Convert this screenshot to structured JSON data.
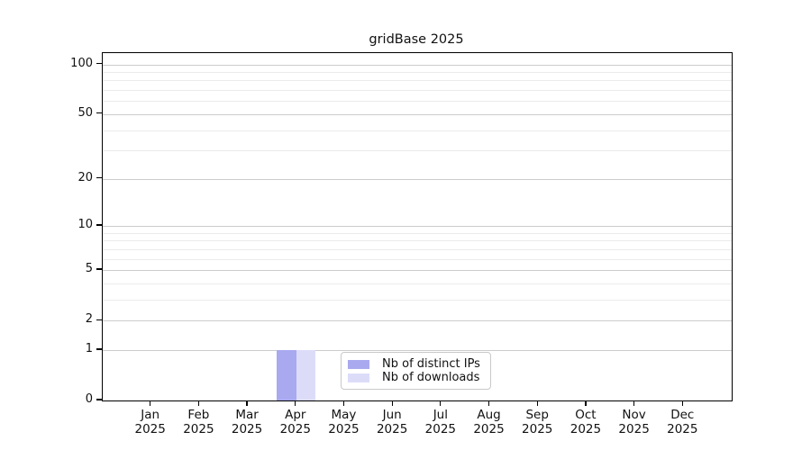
{
  "title": "gridBase 2025",
  "chart_data": {
    "type": "bar",
    "title": "gridBase 2025",
    "categories": [
      "Jan 2025",
      "Feb 2025",
      "Mar 2025",
      "Apr 2025",
      "May 2025",
      "Jun 2025",
      "Jul 2025",
      "Aug 2025",
      "Sep 2025",
      "Oct 2025",
      "Nov 2025",
      "Dec 2025"
    ],
    "x_tick_months": [
      "Jan",
      "Feb",
      "Mar",
      "Apr",
      "May",
      "Jun",
      "Jul",
      "Aug",
      "Sep",
      "Oct",
      "Nov",
      "Dec"
    ],
    "x_tick_year": "2025",
    "series": [
      {
        "name": "Nb of distinct IPs",
        "color": "#a9a9f0",
        "values": [
          0,
          0,
          0,
          1,
          0,
          0,
          0,
          0,
          0,
          0,
          0,
          0
        ]
      },
      {
        "name": "Nb of downloads",
        "color": "#dcdcf9",
        "values": [
          0,
          0,
          0,
          1,
          0,
          0,
          0,
          0,
          0,
          0,
          0,
          0
        ]
      }
    ],
    "y_scale": "log1p",
    "y_ticks": [
      0,
      1,
      2,
      5,
      10,
      20,
      50,
      100
    ],
    "y_minor_gridlines": [
      3,
      4,
      6,
      7,
      8,
      9,
      30,
      40,
      60,
      70,
      80,
      90
    ],
    "ylim": [
      0,
      117
    ],
    "grid": true,
    "legend_position": "lower-center-inside"
  },
  "colors": {
    "major_grid": "#cccccc",
    "minor_grid": "#ebebeb",
    "spine": "#000000",
    "text": "#111111",
    "legend_border": "#c9c9c9"
  }
}
